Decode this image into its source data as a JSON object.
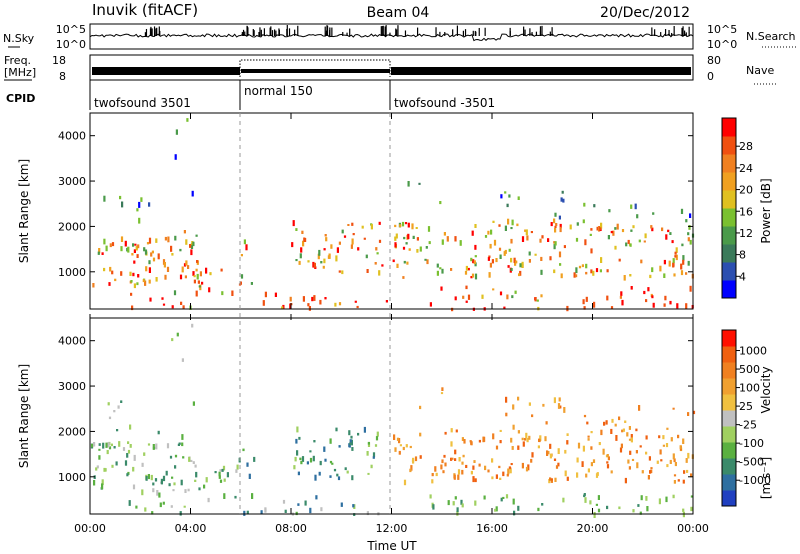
{
  "header": {
    "station": "Inuvik (fitACF)",
    "beam": "Beam 04",
    "date": "20/Dec/2012"
  },
  "chart_data": [
    {
      "type": "line",
      "name": "noise-panel",
      "left_label": "N.Sky",
      "right_label": "N.Search",
      "left_ticks": [
        "10^5",
        "10^0"
      ],
      "right_ticks": [
        "10^5",
        "10^0"
      ]
    },
    {
      "type": "line",
      "name": "frequency-nave-panel",
      "left_label_top": "Freq.",
      "left_label_bottom": "[MHz]",
      "right_label": "Nave",
      "left_ticks": [
        "18",
        "8"
      ],
      "right_ticks": [
        "80",
        "0"
      ],
      "cpid_label": "CPID",
      "modes": [
        {
          "name": "twofsound 3501",
          "start_hour": 0,
          "end_hour": 6
        },
        {
          "name": "normal 150",
          "start_hour": 6,
          "end_hour": 12
        },
        {
          "name": "twofsound -3501",
          "start_hour": 12,
          "end_hour": 24
        }
      ]
    },
    {
      "type": "heatmap",
      "name": "power-panel",
      "ylabel": "Slant Range [km]",
      "yticks": [
        1000,
        2000,
        3000,
        4000
      ],
      "ylim": [
        180,
        4500
      ],
      "colorbar_label": "Power [dB]",
      "colorbar_ticks": [
        4,
        8,
        12,
        16,
        20,
        24,
        28
      ],
      "colors": [
        "#0000ff",
        "#2b4fb0",
        "#3a7a5a",
        "#4a9a4a",
        "#7ac030",
        "#e0c020",
        "#f0a020",
        "#f08020",
        "#f05010",
        "#ff0000"
      ]
    },
    {
      "type": "heatmap",
      "name": "velocity-panel",
      "ylabel": "Slant Range [km]",
      "yticks": [
        1000,
        2000,
        3000,
        4000
      ],
      "ylim": [
        180,
        4500
      ],
      "xlabel": "Time UT",
      "xticks": [
        "00:00",
        "04:00",
        "08:00",
        "12:00",
        "16:00",
        "20:00",
        "00:00"
      ],
      "colorbar_label": "Velocity",
      "colorbar_unit": "[m s⁻¹]",
      "colorbar_ticks": [
        1000,
        500,
        100,
        25,
        -25,
        -100,
        -500,
        -1000
      ],
      "colors": [
        "#2040c0",
        "#2e6fa0",
        "#3a8a6a",
        "#5ab040",
        "#a0d060",
        "#c0c0c0",
        "#f0c040",
        "#f0a030",
        "#f08020",
        "#f06010",
        "#ff1000"
      ]
    }
  ]
}
